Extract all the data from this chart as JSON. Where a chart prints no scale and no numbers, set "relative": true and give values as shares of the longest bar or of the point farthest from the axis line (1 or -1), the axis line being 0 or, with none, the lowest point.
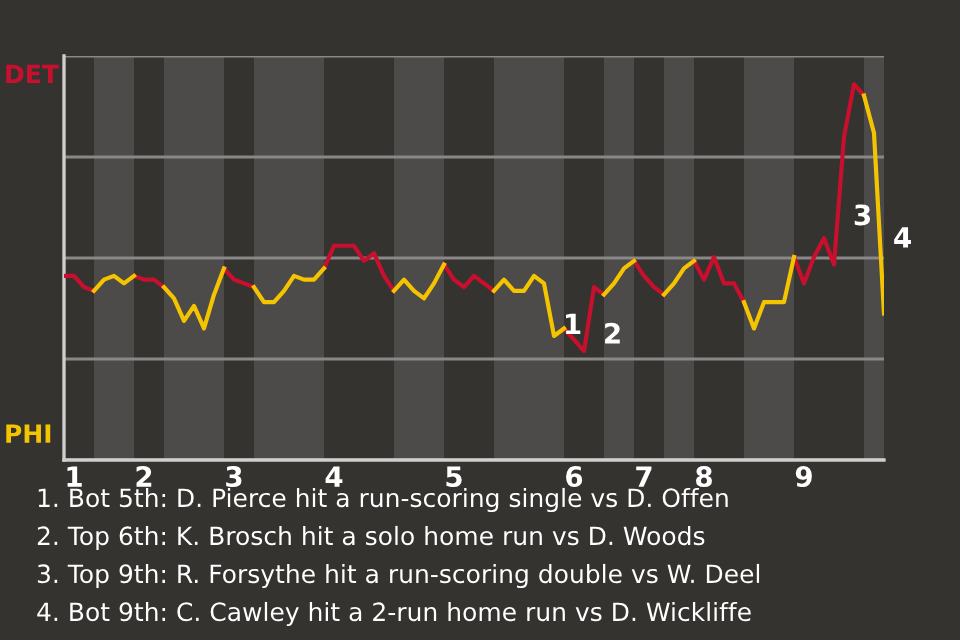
{
  "chart_data": {
    "type": "line",
    "relative": true,
    "categories": [
      null,
      "1",
      null,
      null,
      null,
      null,
      null,
      null,
      "2",
      null,
      null,
      null,
      null,
      null,
      null,
      null,
      null,
      "3",
      null,
      null,
      null,
      null,
      null,
      null,
      null,
      null,
      null,
      "4",
      null,
      null,
      null,
      null,
      null,
      null,
      null,
      null,
      null,
      null,
      null,
      "5",
      null,
      null,
      null,
      null,
      null,
      null,
      null,
      null,
      null,
      null,
      null,
      "6",
      null,
      null,
      null,
      null,
      null,
      null,
      "7",
      null,
      null,
      null,
      null,
      null,
      "8",
      null,
      null,
      null,
      null,
      null,
      null,
      null,
      null,
      null,
      "9",
      null,
      null,
      null,
      null,
      null,
      null,
      null,
      null
    ],
    "grid": "y",
    "marker": "none",
    "line_style": "solid",
    "series": [
      {
        "name": "DET",
        "color": "#c8102e",
        "values": [
          0.49,
          0.49,
          0.46,
          0.45,
          null,
          null,
          null,
          0.49,
          0.48,
          0.48,
          0.46,
          null,
          null,
          null,
          null,
          null,
          0.51,
          0.48,
          0.47,
          0.46,
          null,
          null,
          null,
          null,
          null,
          null,
          0.51,
          0.57,
          0.57,
          0.57,
          0.53,
          0.55,
          0.49,
          0.45,
          null,
          null,
          null,
          null,
          0.52,
          0.48,
          0.46,
          0.49,
          0.47,
          0.45,
          null,
          null,
          null,
          null,
          null,
          null,
          0.35,
          0.32,
          0.29,
          0.46,
          0.44,
          null,
          null,
          0.53,
          0.49,
          0.46,
          0.44,
          null,
          null,
          0.53,
          0.48,
          0.54,
          0.47,
          0.47,
          0.42,
          null,
          null,
          null,
          null,
          0.54,
          0.47,
          0.54,
          0.59,
          0.52,
          0.86,
          1,
          0.97,
          null,
          null
        ]
      },
      {
        "name": "PHI",
        "color": "#f5c400",
        "values": [
          null,
          null,
          null,
          0.45,
          0.48,
          0.49,
          0.47,
          0.49,
          null,
          null,
          0.46,
          0.43,
          0.37,
          0.41,
          0.35,
          0.44,
          0.51,
          null,
          null,
          0.46,
          0.42,
          0.42,
          0.45,
          0.49,
          0.48,
          0.48,
          0.51,
          null,
          null,
          null,
          null,
          null,
          null,
          0.45,
          0.48,
          0.45,
          0.43,
          0.47,
          0.52,
          null,
          null,
          null,
          null,
          0.45,
          0.48,
          0.45,
          0.45,
          0.49,
          0.47,
          0.33,
          0.35,
          null,
          null,
          null,
          0.44,
          0.47,
          0.51,
          0.53,
          null,
          null,
          0.44,
          0.47,
          0.51,
          0.53,
          null,
          null,
          null,
          null,
          0.42,
          0.35,
          0.42,
          0.42,
          0.42,
          0.54,
          null,
          null,
          null,
          null,
          null,
          null,
          0.97,
          0.87,
          0.39
        ]
      }
    ],
    "annotations": [
      "1",
      "2",
      "3",
      "4",
      "1. Bot 5th: D. Pierce hit a run-scoring single vs D. Offen",
      "2. Top 6th: K. Brosch hit a solo home run vs D. Woods",
      "3. Top 9th: R. Forsythe hit a run-scoring double vs W. Deel",
      "4. Bot 9th: C. Cawley hit a 2-run home run vs D. Wickliffe"
    ]
  }
}
